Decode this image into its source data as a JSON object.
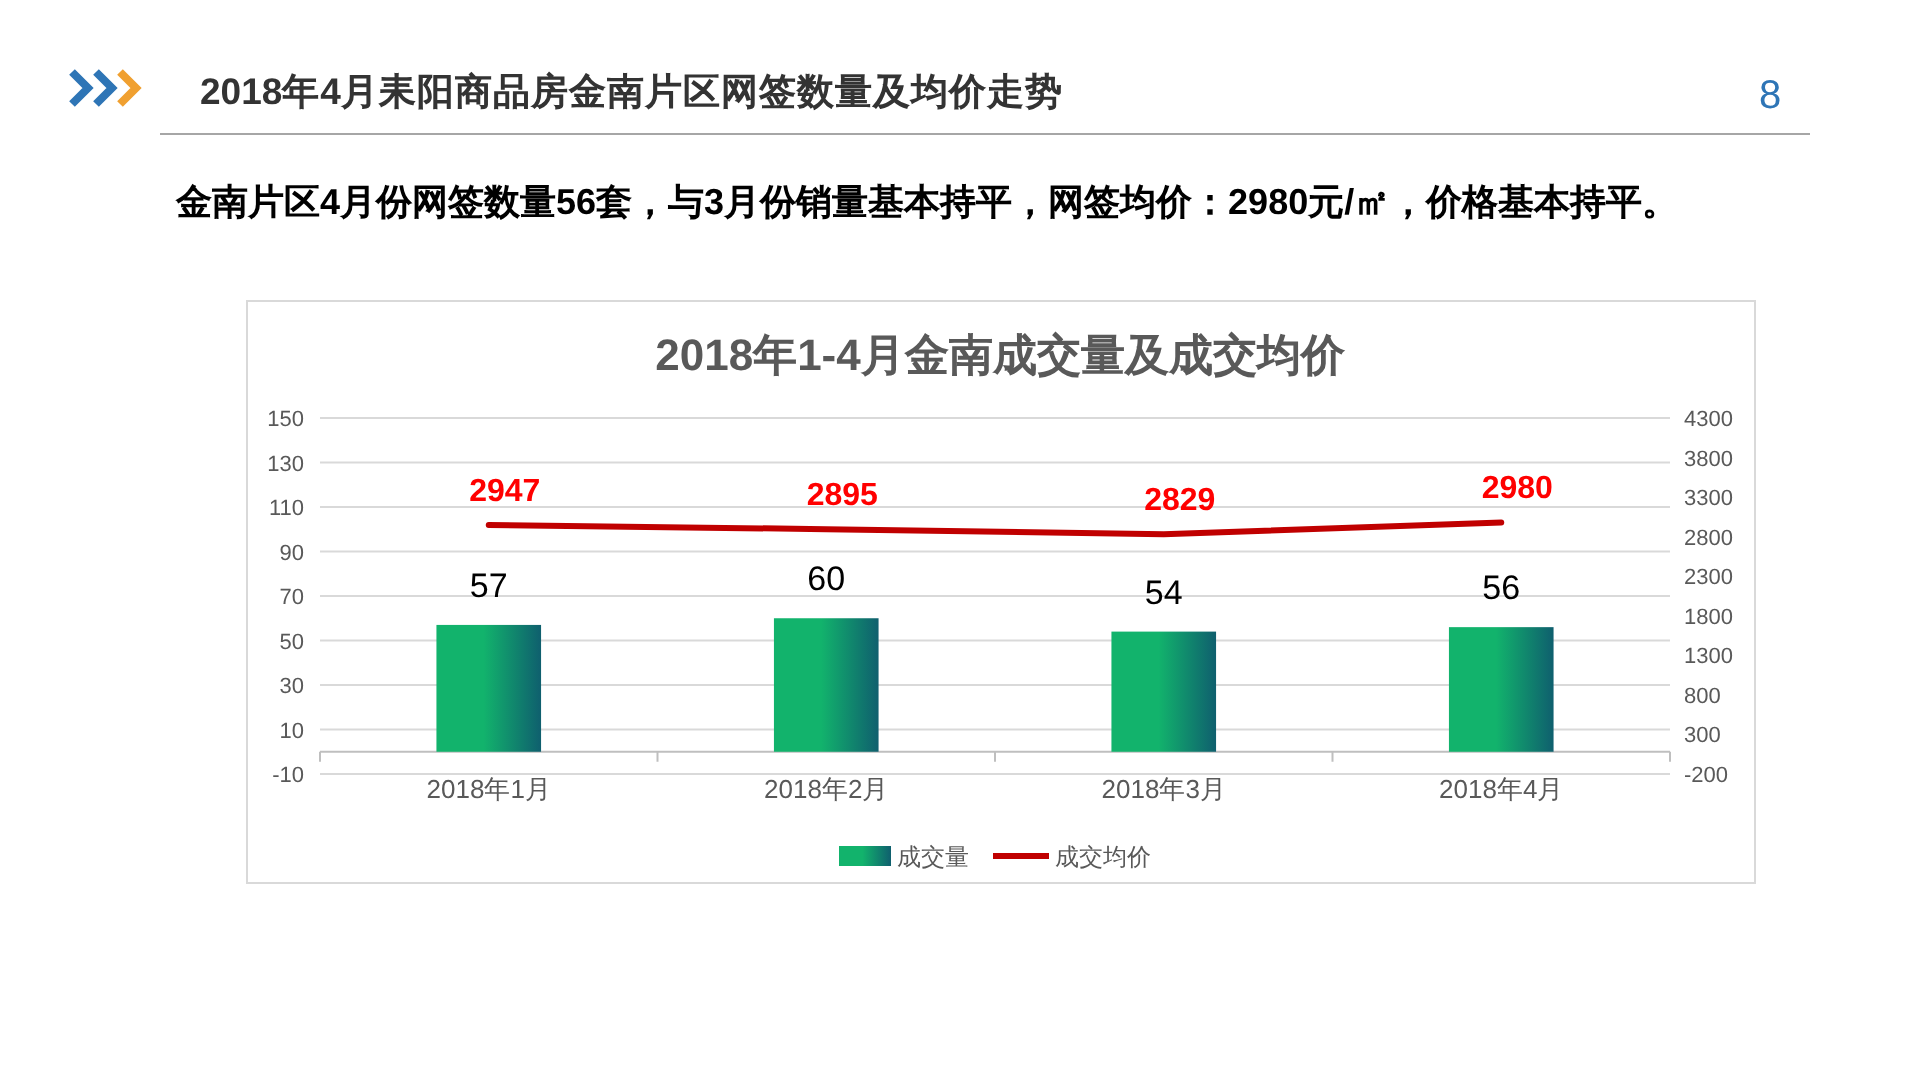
{
  "chart_data": {
    "type": "bar",
    "title": "2018年4月耒阳商品房金南片区网签数量及均价走势",
    "subtitle": "金南片区4月份网签数量56套，与3月份销量基本持平，网签均价：2980元/㎡，价格基本持平。",
    "annotations": [
      "2018年1-4月金南成交量及成交均价",
      "8"
    ],
    "categories": [
      "2018年1月",
      "2018年2月",
      "2018年3月",
      "2018年4月"
    ],
    "series": [
      {
        "name": "成交量",
        "color": "#12b36c",
        "values": [
          57,
          60,
          54,
          56
        ]
      },
      {
        "name": "成交均价",
        "type": "line",
        "axis": "y2",
        "color": "#c00000",
        "values": [
          2947,
          2895,
          2829,
          2980
        ]
      }
    ],
    "ylim": [
      -10,
      150
    ],
    "yticks": [
      -10,
      10,
      30,
      50,
      70,
      90,
      110,
      130,
      150
    ],
    "y2lim": [
      -200,
      4300
    ],
    "y2ticks": [
      -200,
      300,
      800,
      1300,
      1800,
      2300,
      2800,
      3300,
      3800,
      4300
    ],
    "grid": "y",
    "legend": "bottom",
    "data_labels": true,
    "line_style": "solid"
  }
}
